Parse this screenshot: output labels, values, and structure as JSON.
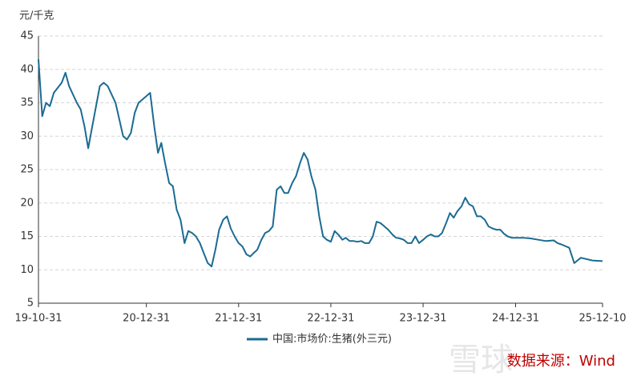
{
  "chart_data": {
    "type": "line",
    "y_unit": "元/千克",
    "source": "数据来源：Wind",
    "watermark": "雪球",
    "xlim": [
      "19-10-31",
      "25-12-10"
    ],
    "xticks": [
      "19-10-31",
      "20-12-31",
      "21-12-31",
      "22-12-31",
      "23-12-31",
      "24-12-31",
      "25-12-10"
    ],
    "ylim": [
      5,
      45
    ],
    "yticks": [
      5,
      10,
      15,
      20,
      25,
      30,
      35,
      40,
      45
    ],
    "grid": true,
    "legend": "bottom",
    "x": [
      "19-10-31",
      "19-11-15",
      "19-11-30",
      "19-12-15",
      "19-12-31",
      "20-01-31",
      "20-02-15",
      "20-02-29",
      "20-03-31",
      "20-04-15",
      "20-04-30",
      "20-05-15",
      "20-05-31",
      "20-06-30",
      "20-07-15",
      "20-07-31",
      "20-08-31",
      "20-09-30",
      "20-10-15",
      "20-10-31",
      "20-11-15",
      "20-11-30",
      "20-12-31",
      "21-01-15",
      "21-01-31",
      "21-02-15",
      "21-02-28",
      "21-03-15",
      "21-03-31",
      "21-04-15",
      "21-04-30",
      "21-05-15",
      "21-05-31",
      "21-06-15",
      "21-06-30",
      "21-07-15",
      "21-07-31",
      "21-08-15",
      "21-08-31",
      "21-09-15",
      "21-09-30",
      "21-10-15",
      "21-10-31",
      "21-11-15",
      "21-11-30",
      "21-12-15",
      "21-12-31",
      "22-01-15",
      "22-01-31",
      "22-02-15",
      "22-02-28",
      "22-03-15",
      "22-03-31",
      "22-04-15",
      "22-04-30",
      "22-05-15",
      "22-05-31",
      "22-06-15",
      "22-06-30",
      "22-07-15",
      "22-07-31",
      "22-08-15",
      "22-08-31",
      "22-09-15",
      "22-09-30",
      "22-10-15",
      "22-10-31",
      "22-11-15",
      "22-11-30",
      "22-12-15",
      "22-12-31",
      "23-01-15",
      "23-01-31",
      "23-02-15",
      "23-02-28",
      "23-03-15",
      "23-03-31",
      "23-04-15",
      "23-04-30",
      "23-05-15",
      "23-05-31",
      "23-06-15",
      "23-06-30",
      "23-07-15",
      "23-07-31",
      "23-08-15",
      "23-08-31",
      "23-09-15",
      "23-09-30",
      "23-10-15",
      "23-10-31",
      "23-11-15",
      "23-11-30",
      "23-12-15",
      "23-12-31",
      "24-01-15",
      "24-01-31",
      "24-02-15",
      "24-02-29",
      "24-03-15",
      "24-03-31",
      "24-04-15",
      "24-04-30",
      "24-05-15",
      "24-05-31",
      "24-06-15",
      "24-06-30",
      "24-07-15",
      "24-07-31",
      "24-08-15",
      "24-08-31",
      "24-09-15",
      "24-09-30",
      "24-10-15",
      "24-10-31",
      "24-11-15",
      "24-11-30",
      "24-12-15",
      "24-12-31",
      "25-01-31",
      "25-02-28",
      "25-03-31",
      "25-04-30",
      "25-05-31",
      "25-06-15",
      "25-06-30",
      "25-07-31",
      "25-08-20",
      "25-09-15",
      "25-10-31",
      "25-12-10"
    ],
    "series": [
      {
        "name": "中国:市场价:生猪(外三元)",
        "color": "#1b6b93",
        "values": [
          41.5,
          33,
          35,
          34.5,
          36.5,
          38,
          39.5,
          37.5,
          35,
          34,
          31.5,
          28.2,
          31.5,
          37.5,
          38,
          37.5,
          35,
          30,
          29.5,
          30.5,
          33.5,
          35,
          36,
          36.5,
          31.5,
          27.5,
          29,
          26,
          23,
          22.5,
          19,
          17.5,
          14,
          15.8,
          15.5,
          15,
          14,
          12.5,
          11,
          10.5,
          13,
          16,
          17.5,
          18,
          16.2,
          15,
          14,
          13.5,
          12.3,
          12,
          12.5,
          13,
          14.5,
          15.5,
          15.8,
          16.5,
          22,
          22.5,
          21.5,
          21.5,
          23,
          24,
          26,
          27.5,
          26.5,
          24,
          22,
          18,
          15,
          14.5,
          14.2,
          15.8,
          15.2,
          14.5,
          14.8,
          14.3,
          14.3,
          14.2,
          14.3,
          14,
          14,
          15,
          17.2,
          17,
          16.5,
          16,
          15.3,
          14.8,
          14.7,
          14.5,
          14,
          14,
          15,
          14,
          14.5,
          15,
          15.3,
          15,
          15,
          15.5,
          17,
          18.5,
          17.8,
          18.8,
          19.5,
          20.8,
          19.8,
          19.5,
          18,
          18,
          17.5,
          16.5,
          16.2,
          16,
          16,
          15.4,
          15,
          14.8,
          14.8,
          14.8,
          14.7,
          14.5,
          14.3,
          14.4,
          14,
          13.8,
          13.3,
          11,
          11.8,
          11.4,
          11.3
        ]
      }
    ]
  }
}
